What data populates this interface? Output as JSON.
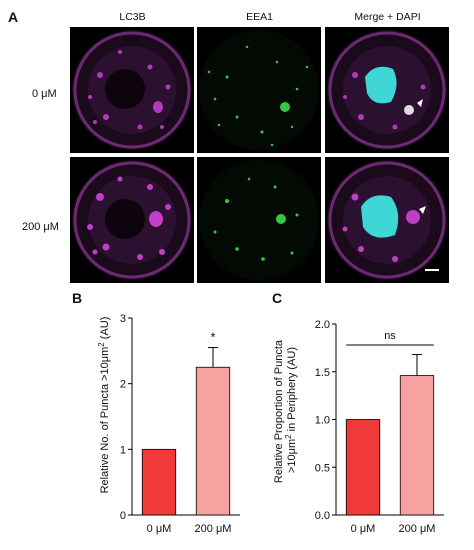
{
  "figure": {
    "panel_a": {
      "letter": "A",
      "columns": [
        "LC3B",
        "EEA1",
        "Merge + DAPI"
      ],
      "rows": [
        "0 μM",
        "200 μM"
      ],
      "colors": {
        "lc3b": "#c03ec8",
        "eea1": "#2fd23a",
        "dapi": "#3fd6d6",
        "background": "#000000"
      }
    },
    "panel_b": {
      "letter": "B",
      "ylabel_main": "Relative No. of Puncta >10μm",
      "ylabel_sup": "2",
      "ylabel_tail": " (AU)",
      "yticks": [
        "0",
        "1",
        "2",
        "3"
      ],
      "significance": "*"
    },
    "panel_c": {
      "letter": "C",
      "ylabel_line1": "Relative Proportion of Puncta",
      "ylabel_line2_main": ">10μm",
      "ylabel_line2_sup": "2",
      "ylabel_line2_tail": " in Periphery (AU)",
      "yticks": [
        "0.0",
        "0.5",
        "1.0",
        "1.5",
        "2.0"
      ],
      "significance": "ns"
    }
  },
  "chart_data": [
    {
      "type": "bar",
      "categories": [
        "0 μM",
        "200 μM"
      ],
      "values": [
        1.0,
        2.25
      ],
      "errors": [
        0,
        0.3
      ],
      "ylim": [
        0,
        3
      ],
      "colors": [
        "#f03a3a",
        "#f7a1a1"
      ]
    },
    {
      "type": "bar",
      "categories": [
        "0 μM",
        "200 μM"
      ],
      "values": [
        1.0,
        1.46
      ],
      "errors": [
        0,
        0.22
      ],
      "ylim": [
        0,
        2.0
      ],
      "colors": [
        "#f03a3a",
        "#f7a1a1"
      ]
    }
  ]
}
